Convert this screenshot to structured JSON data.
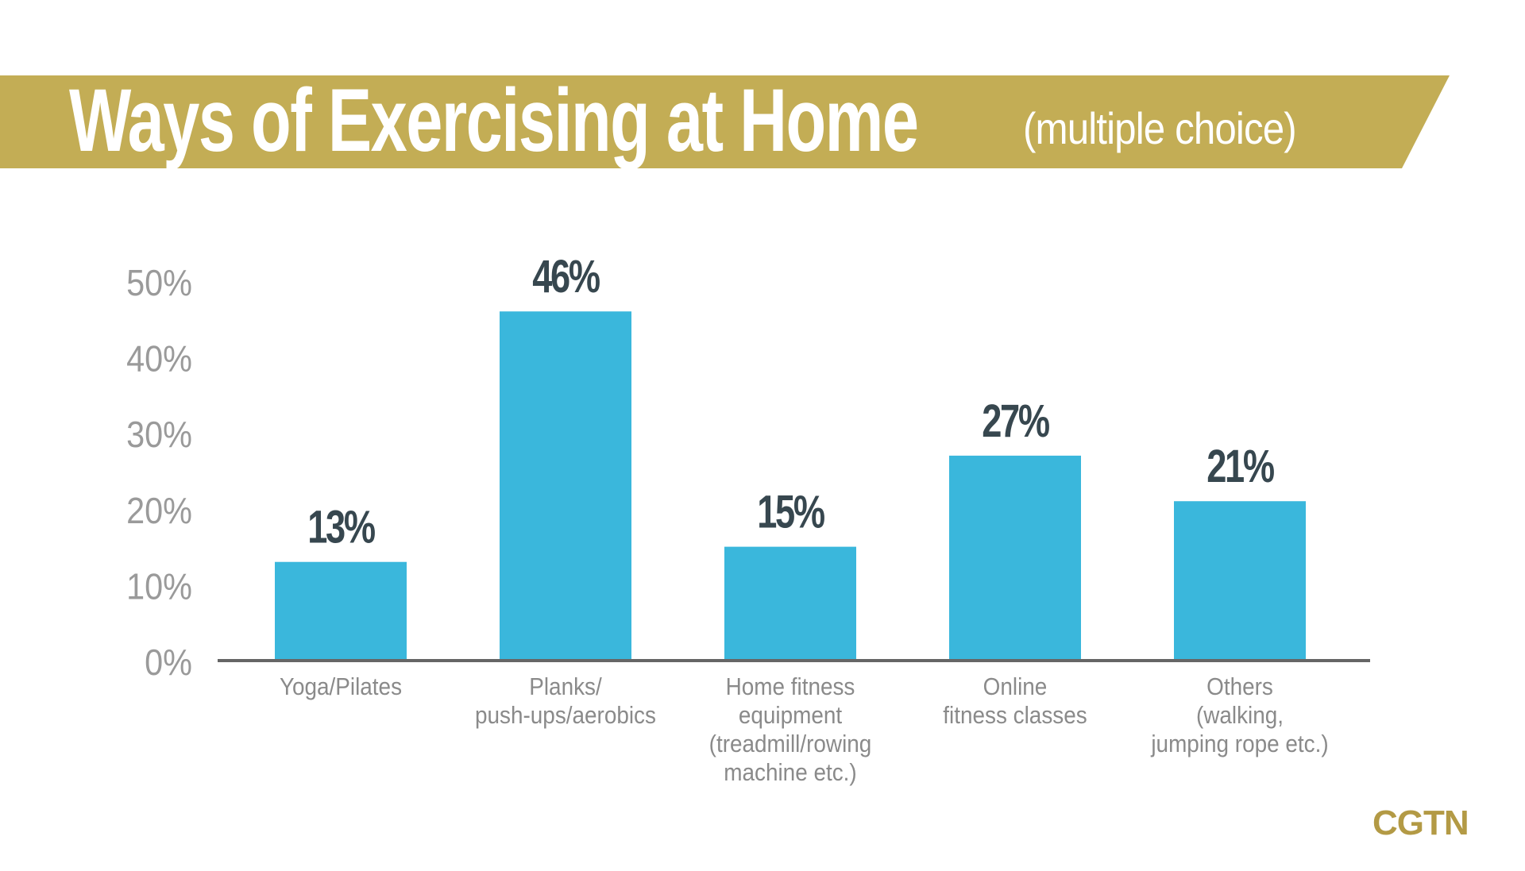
{
  "header": {
    "title": "Ways of Exercising at Home",
    "subtitle": "(multiple choice)"
  },
  "logo": "CGTN",
  "colors": {
    "banner": "#c3ad55",
    "bar": "#3ab7dc",
    "value_label": "#37474f",
    "tick": "#9a9a9a",
    "axis": "#666666",
    "logo": "#b39a45"
  },
  "chart_data": {
    "type": "bar",
    "title": "Ways of Exercising at Home (multiple choice)",
    "xlabel": "",
    "ylabel": "",
    "ylim": [
      0,
      50
    ],
    "yticks": [
      "0%",
      "10%",
      "20%",
      "30%",
      "40%",
      "50%"
    ],
    "grid": false,
    "categories": [
      [
        "Yoga/Pilates"
      ],
      [
        "Planks/",
        "push-ups/aerobics"
      ],
      [
        "Home fitness",
        "equipment",
        "(treadmill/rowing",
        "machine etc.)"
      ],
      [
        "Online",
        "fitness classes"
      ],
      [
        "Others",
        "(walking,",
        "jumping rope etc.)"
      ]
    ],
    "values": [
      13,
      46,
      15,
      27,
      21
    ],
    "value_labels": [
      "13%",
      "46%",
      "15%",
      "27%",
      "21%"
    ]
  }
}
